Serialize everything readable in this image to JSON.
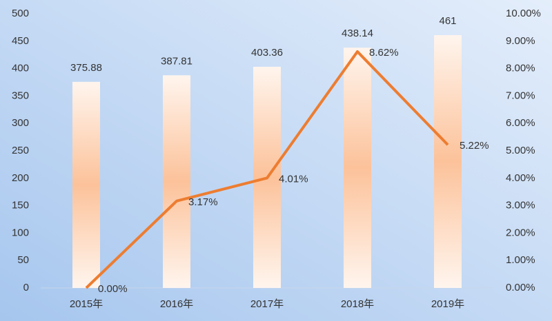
{
  "chart_data": {
    "type": "bar-line",
    "categories": [
      "2015年",
      "2016年",
      "2017年",
      "2018年",
      "2019年"
    ],
    "series": [
      {
        "type": "bar",
        "color": "#fcc29a",
        "values": [
          375.88,
          387.81,
          403.36,
          438.14,
          461
        ]
      },
      {
        "type": "line",
        "axis": "y2",
        "color": "#ed7d31",
        "values": [
          0,
          3.17,
          4.01,
          8.62,
          5.22
        ],
        "value_labels": [
          "0.00%",
          "3.17%",
          "4.01%",
          "8.62%",
          "5.22%"
        ]
      }
    ],
    "ylim": [
      0,
      500
    ],
    "yticks": [
      0,
      50,
      100,
      150,
      200,
      250,
      300,
      350,
      400,
      450,
      500
    ],
    "y2lim": [
      0,
      10
    ],
    "y2ticks": [
      {
        "value": 0,
        "label": "0.00%"
      },
      {
        "value": 1,
        "label": "1.00%"
      },
      {
        "value": 2,
        "label": "2.00%"
      },
      {
        "value": 3,
        "label": "3.00%"
      },
      {
        "value": 4,
        "label": "4.00%"
      },
      {
        "value": 5,
        "label": "5.00%"
      },
      {
        "value": 6,
        "label": "6.00%"
      },
      {
        "value": 7,
        "label": "7.00%"
      },
      {
        "value": 8,
        "label": "8.00%"
      },
      {
        "value": 9,
        "label": "9.00%"
      },
      {
        "value": 10,
        "label": "10.00%"
      }
    ]
  }
}
